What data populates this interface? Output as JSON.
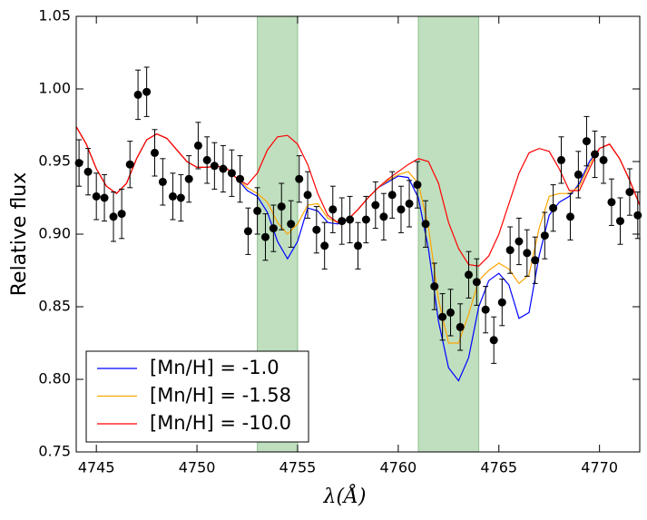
{
  "chart_data": {
    "type": "line",
    "xlabel": "λ(Å)",
    "ylabel": "Relative flux",
    "xlim": [
      4744,
      4772
    ],
    "ylim": [
      0.75,
      1.05
    ],
    "xticks": [
      4745,
      4750,
      4755,
      4760,
      4765,
      4770
    ],
    "yticks": [
      0.75,
      {
        "value": 0.8,
        "label": "0.80"
      },
      0.85,
      {
        "value": 0.9,
        "label": "0.90"
      },
      0.95,
      {
        "value": 1.0,
        "label": "1.00"
      },
      1.05
    ],
    "legend": "lower left",
    "shaded_regions": [
      [
        4753,
        4755
      ],
      [
        4761,
        4764
      ]
    ],
    "shade_color": "#bfdfbf",
    "x": [
      4744,
      4744.5,
      4745,
      4745.5,
      4746,
      4746.5,
      4747,
      4747.5,
      4748,
      4748.5,
      4749,
      4749.5,
      4750,
      4750.5,
      4751,
      4751.5,
      4752,
      4752.5,
      4753,
      4753.5,
      4754,
      4754.5,
      4755,
      4755.5,
      4756,
      4756.5,
      4757,
      4757.5,
      4758,
      4758.5,
      4759,
      4759.5,
      4760,
      4760.5,
      4761,
      4761.5,
      4762,
      4762.5,
      4763,
      4763.5,
      4764,
      4764.5,
      4765,
      4765.5,
      4766,
      4766.5,
      4767,
      4767.5,
      4768,
      4768.5,
      4769,
      4769.5,
      4770,
      4770.5,
      4771,
      4771.5,
      4772
    ],
    "series": [
      {
        "name": "[Mn/H] = -1.0",
        "color": "#0000ff",
        "values": [
          0.974,
          0.962,
          0.945,
          0.933,
          0.928,
          0.935,
          0.952,
          0.965,
          0.969,
          0.966,
          0.958,
          0.95,
          0.946,
          0.946,
          0.947,
          0.945,
          0.938,
          0.93,
          0.926,
          0.915,
          0.895,
          0.883,
          0.895,
          0.918,
          0.916,
          0.908,
          0.907,
          0.91,
          0.917,
          0.925,
          0.932,
          0.936,
          0.94,
          0.939,
          0.925,
          0.89,
          0.84,
          0.808,
          0.799,
          0.815,
          0.85,
          0.868,
          0.873,
          0.865,
          0.842,
          0.846,
          0.885,
          0.913,
          0.922,
          0.926,
          0.935,
          0.95,
          0.959,
          0.962,
          0.952,
          0.937,
          0.92
        ]
      },
      {
        "name": "[Mn/H] = -1.58",
        "color": "#ffa500",
        "values": [
          0.974,
          0.962,
          0.945,
          0.933,
          0.928,
          0.935,
          0.952,
          0.965,
          0.969,
          0.966,
          0.958,
          0.95,
          0.946,
          0.946,
          0.947,
          0.945,
          0.938,
          0.932,
          0.928,
          0.922,
          0.908,
          0.9,
          0.907,
          0.92,
          0.921,
          0.911,
          0.908,
          0.91,
          0.917,
          0.925,
          0.932,
          0.937,
          0.941,
          0.943,
          0.935,
          0.905,
          0.855,
          0.825,
          0.825,
          0.845,
          0.868,
          0.875,
          0.88,
          0.876,
          0.866,
          0.872,
          0.904,
          0.926,
          0.928,
          0.928,
          0.933,
          0.948,
          0.959,
          0.962,
          0.952,
          0.937,
          0.92
        ]
      },
      {
        "name": "[Mn/H] = -10.0",
        "color": "#ff0000",
        "values": [
          0.974,
          0.962,
          0.945,
          0.933,
          0.928,
          0.935,
          0.952,
          0.965,
          0.969,
          0.966,
          0.958,
          0.95,
          0.946,
          0.946,
          0.947,
          0.945,
          0.938,
          0.934,
          0.942,
          0.958,
          0.967,
          0.968,
          0.962,
          0.948,
          0.928,
          0.913,
          0.908,
          0.91,
          0.917,
          0.925,
          0.932,
          0.938,
          0.943,
          0.948,
          0.952,
          0.95,
          0.935,
          0.908,
          0.89,
          0.879,
          0.878,
          0.885,
          0.9,
          0.921,
          0.942,
          0.956,
          0.959,
          0.957,
          0.945,
          0.93,
          0.93,
          0.945,
          0.959,
          0.962,
          0.952,
          0.937,
          0.92
        ]
      }
    ],
    "observed": {
      "color": "#000000",
      "x": [
        4744.14,
        4744.59,
        4745.0,
        4745.4,
        4745.85,
        4746.26,
        4746.67,
        4747.07,
        4747.5,
        4747.9,
        4748.3,
        4748.8,
        4749.2,
        4749.6,
        4750.06,
        4750.5,
        4750.87,
        4751.3,
        4751.73,
        4752.14,
        4752.54,
        4753.0,
        4753.4,
        4753.8,
        4754.2,
        4754.67,
        4755.08,
        4755.5,
        4755.94,
        4756.34,
        4756.75,
        4757.2,
        4757.6,
        4758.0,
        4758.4,
        4758.87,
        4759.28,
        4759.7,
        4760.14,
        4760.55,
        4760.95,
        4761.36,
        4761.8,
        4762.2,
        4762.6,
        4763.08,
        4763.5,
        4763.9,
        4764.34,
        4764.75,
        4765.16,
        4765.56,
        4766.0,
        4766.4,
        4766.8,
        4767.28,
        4767.7,
        4768.1,
        4768.55,
        4768.95,
        4769.36,
        4769.77,
        4770.2,
        4770.6,
        4771.03,
        4771.5,
        4771.9
      ],
      "values": [
        0.949,
        0.943,
        0.926,
        0.925,
        0.912,
        0.914,
        0.948,
        0.996,
        0.998,
        0.956,
        0.936,
        0.926,
        0.925,
        0.938,
        0.961,
        0.951,
        0.947,
        0.945,
        0.942,
        0.938,
        0.902,
        0.916,
        0.898,
        0.904,
        0.919,
        0.907,
        0.938,
        0.927,
        0.903,
        0.892,
        0.917,
        0.909,
        0.91,
        0.892,
        0.91,
        0.92,
        0.912,
        0.927,
        0.917,
        0.921,
        0.934,
        0.907,
        0.864,
        0.843,
        0.846,
        0.836,
        0.872,
        0.867,
        0.848,
        0.827,
        0.853,
        0.889,
        0.895,
        0.887,
        0.882,
        0.899,
        0.918,
        0.951,
        0.912,
        0.941,
        0.964,
        0.955,
        0.951,
        0.922,
        0.909,
        0.929,
        0.913
      ],
      "errors": [
        0.016,
        0.016,
        0.016,
        0.016,
        0.017,
        0.017,
        0.016,
        0.017,
        0.017,
        0.016,
        0.016,
        0.016,
        0.016,
        0.016,
        0.016,
        0.016,
        0.016,
        0.016,
        0.016,
        0.016,
        0.016,
        0.016,
        0.016,
        0.016,
        0.016,
        0.016,
        0.016,
        0.016,
        0.016,
        0.016,
        0.016,
        0.016,
        0.016,
        0.016,
        0.016,
        0.016,
        0.016,
        0.016,
        0.016,
        0.016,
        0.016,
        0.016,
        0.016,
        0.016,
        0.016,
        0.016,
        0.016,
        0.016,
        0.016,
        0.016,
        0.016,
        0.016,
        0.016,
        0.016,
        0.016,
        0.016,
        0.016,
        0.016,
        0.016,
        0.016,
        0.017,
        0.016,
        0.016,
        0.016,
        0.016,
        0.016,
        0.016
      ]
    }
  }
}
